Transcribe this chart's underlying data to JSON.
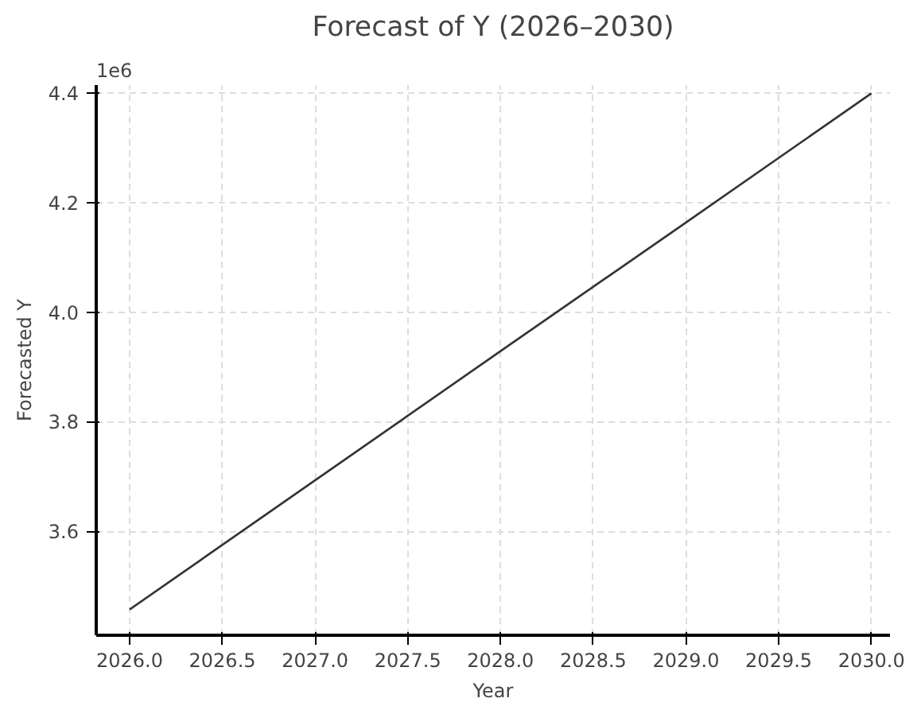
{
  "chart_data": {
    "type": "line",
    "title": "Forecast of Y (2026–2030)",
    "xlabel": "Year",
    "ylabel": "Forecasted Y",
    "annotations": [
      "1e6"
    ],
    "x": [
      2026,
      2027,
      2028,
      2029,
      2030
    ],
    "series": [
      {
        "color": "#333333",
        "values": [
          3.457,
          3.693,
          3.929,
          4.164,
          4.4
        ]
      }
    ],
    "xlim": [
      2025.82,
      2030.1
    ],
    "ylim": [
      3.41,
      4.415
    ],
    "xticks": [
      {
        "value": 2026,
        "label": "2026.0"
      },
      2026.5,
      {
        "value": 2027,
        "label": "2027.0"
      },
      2027.5,
      {
        "value": 2028,
        "label": "2028.0"
      },
      2028.5,
      {
        "value": 2029,
        "label": "2029.0"
      },
      2029.5,
      {
        "value": 2030,
        "label": "2030.0"
      }
    ],
    "yticks": [
      3.6,
      3.8,
      {
        "value": 4,
        "label": "4.0"
      },
      4.2,
      4.4
    ],
    "grid": true,
    "marker": "none",
    "line_style": "solid"
  }
}
